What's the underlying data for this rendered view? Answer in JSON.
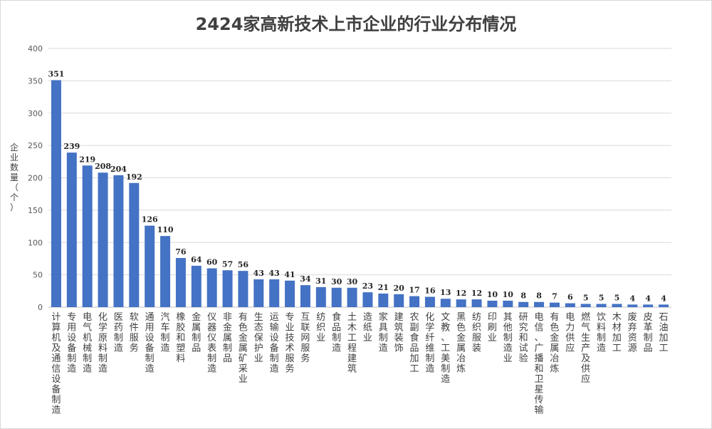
{
  "chart_data": {
    "type": "bar",
    "title": "2424家高新技术上市企业的行业分布情况",
    "ylabel": "企业数量（个）",
    "xlabel": "",
    "ylim": [
      0,
      400
    ],
    "yticks": [
      "0",
      "50",
      "100",
      "150",
      "200",
      "250",
      "300",
      "350",
      "400"
    ],
    "grid": true,
    "bar_color": "#4472c4",
    "categories": [
      "计算机及通信设备制造",
      "专用设备制造",
      "电气机械制造",
      "化学原料制造",
      "医药制造",
      "软件服务",
      "通用设备制造",
      "汽车制造",
      "橡胶和塑料",
      "金属制品",
      "仪器仪表制造",
      "非金属制品",
      "有色金属矿采业",
      "生态保护业",
      "运输设备制造",
      "专业技术服务",
      "互联网服务",
      "纺织业",
      "食品制造",
      "土木工程建筑",
      "造纸业",
      "家具制造",
      "建筑装饰",
      "农副食品加工",
      "化学纤维制造",
      "文教、工美制造",
      "黑色金属冶炼",
      "纺织服装",
      "印刷业",
      "其他制造业",
      "研究和试验",
      "电信、广播和卫星传输",
      "有色金属冶炼",
      "电力供应",
      "燃气生产及供应",
      "饮料制造",
      "木材加工",
      "废弃资源",
      "皮革制品",
      "石油加工"
    ],
    "values": [
      351,
      239,
      219,
      208,
      204,
      192,
      126,
      110,
      76,
      64,
      60,
      57,
      56,
      43,
      43,
      41,
      34,
      31,
      30,
      30,
      23,
      21,
      20,
      17,
      16,
      13,
      12,
      12,
      10,
      10,
      8,
      8,
      7,
      6,
      5,
      5,
      5,
      4,
      4,
      4
    ]
  }
}
